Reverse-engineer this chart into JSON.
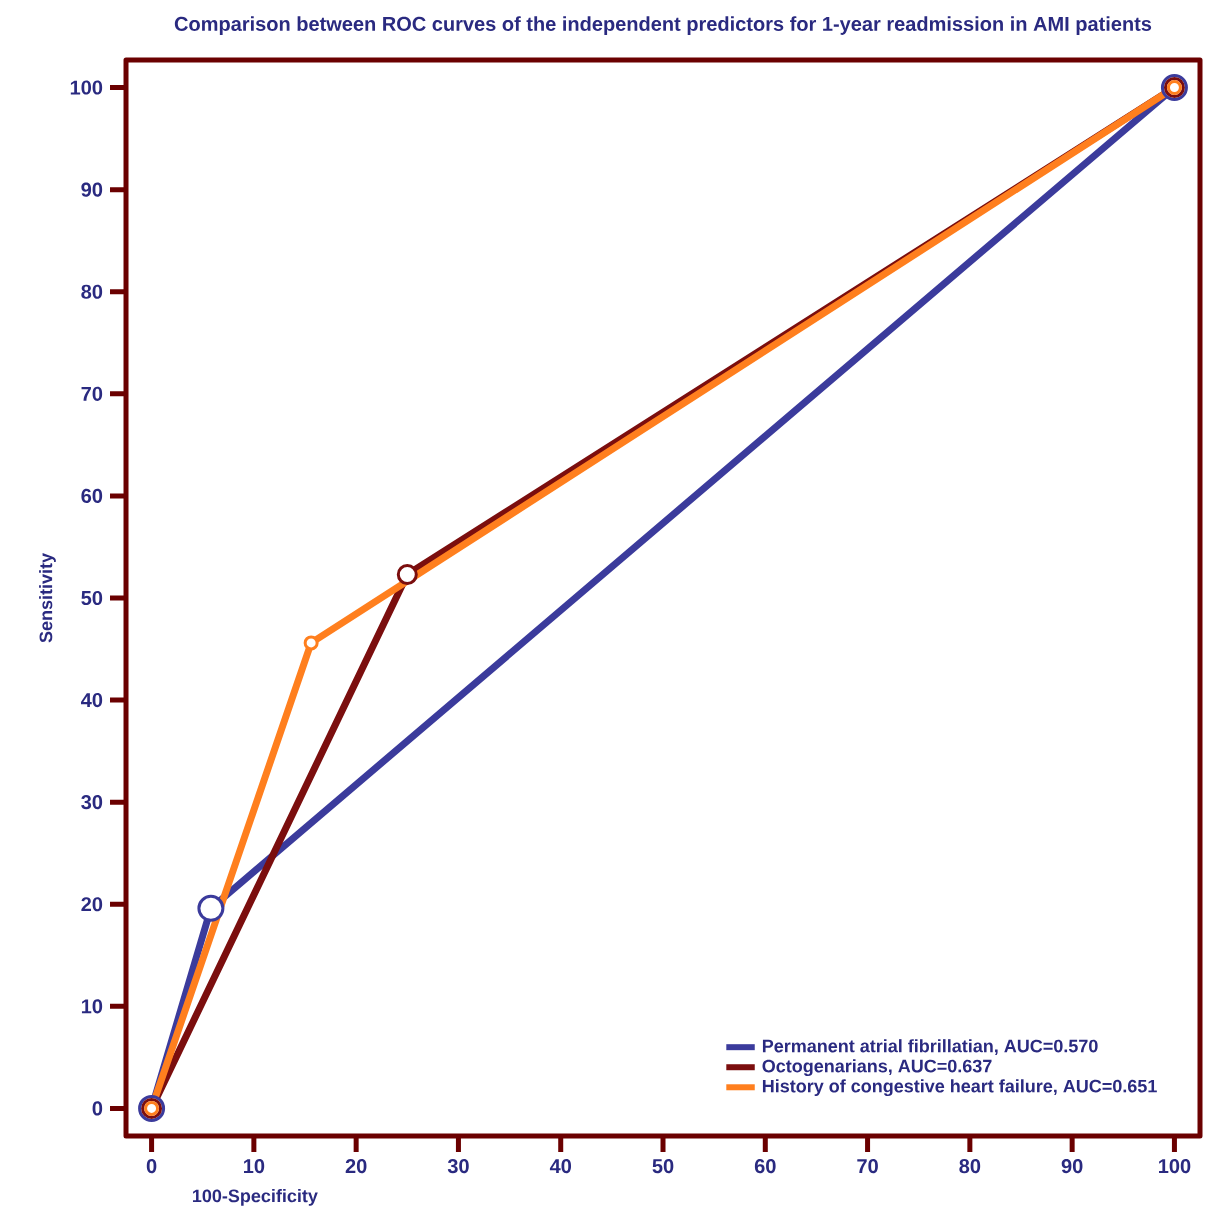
{
  "chart_data": {
    "type": "line",
    "title": "Comparison between ROC curves of the  independent predictors for 1-year readmission in AMI patients",
    "xlabel": "100-Specificity",
    "ylabel": "Sensitivity",
    "xlim": [
      -2.5,
      102.5
    ],
    "ylim": [
      -2.7,
      102.7
    ],
    "xticks": [
      0,
      10,
      20,
      30,
      40,
      50,
      60,
      70,
      80,
      90,
      100
    ],
    "yticks": [
      0,
      10,
      20,
      30,
      40,
      50,
      60,
      70,
      80,
      90,
      100
    ],
    "grid": false,
    "legend": "bottom right",
    "marker": "circle",
    "line_style": "solid",
    "series": [
      {
        "name": "Permanent atrial fibrillatian, AUC=0.570",
        "color": "#3b3b9c",
        "x": [
          0,
          5.8,
          100
        ],
        "values": [
          0,
          19.6,
          100
        ]
      },
      {
        "name": "Octogenarians, AUC=0.637",
        "color": "#7b0e0e",
        "x": [
          0,
          25,
          100
        ],
        "values": [
          0,
          52.3,
          100
        ]
      },
      {
        "name": "History of congestive heart failure, AUC=0.651",
        "color": "#ff7f1e",
        "x": [
          0,
          15.6,
          100
        ],
        "values": [
          0,
          45.6,
          100
        ]
      }
    ]
  }
}
